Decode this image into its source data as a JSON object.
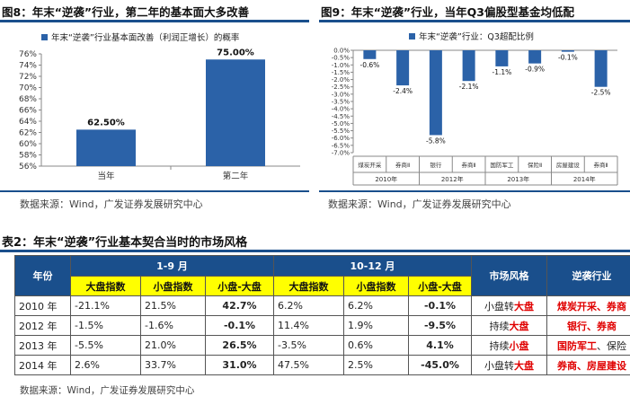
{
  "fig8": {
    "title": "图8：年末“逆袭”行业，第二年的基本面大多改善",
    "source": "数据来源：Wind，广发证券发展研究中心"
  },
  "fig9": {
    "title": "图9：年末“逆袭”行业，当年Q3偏股型基金均低配",
    "source": "数据来源：Wind，广发证券发展研究中心"
  },
  "table2": {
    "title": "表2：年末“逆袭”行业基本契合当时的市场风格",
    "source": "数据来源：Wind，广发证券发展研究中心",
    "headers": {
      "year": "年份",
      "period1": "1-9 月",
      "period2": "10-12 月",
      "style": "市场风格",
      "industry": "逆袭行业",
      "large": "大盘指数",
      "small": "小盘指数",
      "diff": "小盘-大盘"
    },
    "rows": [
      {
        "year": "2010 年",
        "p1": [
          "-21.1%",
          "21.5%",
          "42.7%"
        ],
        "p2": [
          "6.2%",
          "6.2%",
          "-0.1%"
        ],
        "style_pre": "小盘转",
        "style_hl": "大盘",
        "ind_hl": "煤炭开采、券商",
        "ind_rest": ""
      },
      {
        "year": "2012 年",
        "p1": [
          "-1.5%",
          "-1.6%",
          "-0.1%"
        ],
        "p2": [
          "11.4%",
          "1.9%",
          "-9.5%"
        ],
        "style_pre": "持续",
        "style_hl": "大盘",
        "ind_hl": "银行、券商",
        "ind_rest": ""
      },
      {
        "year": "2013 年",
        "p1": [
          "-5.5%",
          "21.0%",
          "26.5%"
        ],
        "p2": [
          "-3.5%",
          "0.6%",
          "4.1%"
        ],
        "style_pre": "持续",
        "style_hl": "小盘",
        "ind_hl": "国防军工",
        "ind_rest": "、保险"
      },
      {
        "year": "2014 年",
        "p1": [
          "2.6%",
          "33.7%",
          "31.0%"
        ],
        "p2": [
          "47.5%",
          "2.5%",
          "-45.0%"
        ],
        "style_pre": "小盘转",
        "style_hl": "大盘",
        "ind_hl": "券商、房屋建设",
        "ind_rest": ""
      }
    ]
  },
  "chart_data": [
    {
      "type": "bar",
      "legend": "年末“逆袭”行业基本面改善（利润正增长）的概率",
      "categories": [
        "当年",
        "第二年"
      ],
      "values": [
        62.5,
        75.0
      ],
      "value_labels": [
        "62.50%",
        "75.00%"
      ],
      "ylim": [
        56,
        76
      ],
      "yticks": [
        56,
        58,
        60,
        62,
        64,
        66,
        68,
        70,
        72,
        74,
        76
      ],
      "ytick_labels": [
        "56%",
        "58%",
        "60%",
        "62%",
        "64%",
        "66%",
        "68%",
        "70%",
        "72%",
        "74%",
        "76%"
      ],
      "color": "#2b62a8"
    },
    {
      "type": "bar",
      "legend": "年末“逆袭”行业：Q3超配比例",
      "categories": [
        "煤炭开采",
        "券商Ⅱ",
        "银行",
        "券商Ⅱ",
        "国防军工",
        "保险Ⅱ",
        "房屋建设",
        "券商Ⅱ"
      ],
      "years": [
        "2010年",
        "2012年",
        "2013年",
        "2014年"
      ],
      "values": [
        -0.6,
        -2.4,
        -5.8,
        -2.1,
        -1.1,
        -0.9,
        -0.1,
        -2.5
      ],
      "value_labels": [
        "-0.6%",
        "-2.4%",
        "-5.8%",
        "-2.1%",
        "-1.1%",
        "-0.9%",
        "-0.1%",
        "-2.5%"
      ],
      "ylim": [
        -7,
        0
      ],
      "yticks": [
        0,
        -0.5,
        -1,
        -1.5,
        -2,
        -2.5,
        -3,
        -3.5,
        -4,
        -4.5,
        -5,
        -5.5,
        -6,
        -6.5,
        -7
      ],
      "ytick_labels": [
        "0.0%",
        "-0.5%",
        "-1.0%",
        "-1.5%",
        "-2.0%",
        "-2.5%",
        "-3.0%",
        "-3.5%",
        "-4.0%",
        "-4.5%",
        "-5.0%",
        "-5.5%",
        "-6.0%",
        "-6.5%",
        "-7.0%"
      ],
      "color": "#2b62a8"
    }
  ]
}
